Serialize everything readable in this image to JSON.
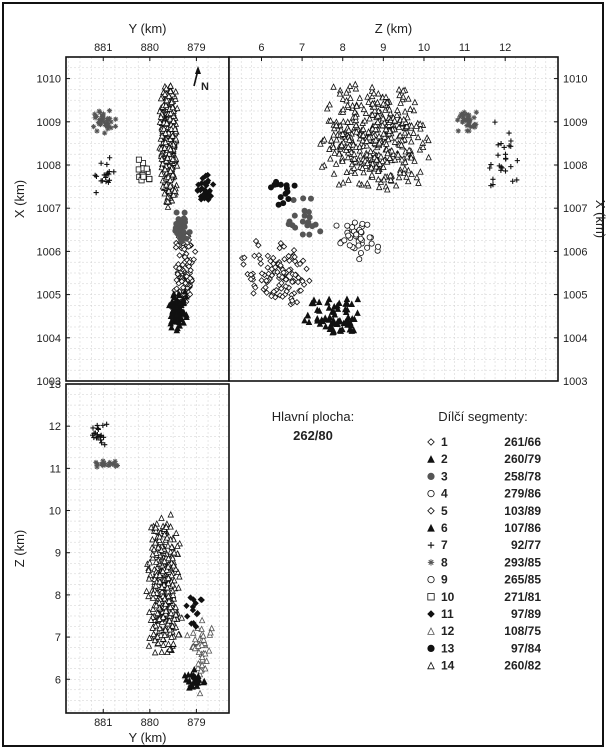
{
  "figure": {
    "main_label": "Hlavní plocha:",
    "main_value": "262/80",
    "legend_title": "Dílčí segmenty:",
    "north_label": "N"
  },
  "chart_data": [
    {
      "type": "scatter",
      "panel": "map-x-y",
      "xlabel": "Y (km)",
      "ylabel": "X (km)",
      "x_reversed": true,
      "xlim": [
        881.8,
        878.3
      ],
      "ylim": [
        1010.5,
        1003
      ],
      "x_ticks": [
        881,
        880,
        879
      ],
      "y_ticks": [
        1003,
        1004,
        1005,
        1006,
        1007,
        1008,
        1009,
        1010
      ],
      "grid": true,
      "clusters": [
        {
          "segment": 14,
          "x": [
            879.8,
            879.4
          ],
          "y": [
            1007.0,
            1010.0
          ],
          "n": 420
        },
        {
          "segment": 1,
          "x": [
            879.5,
            879.0
          ],
          "y": [
            1004.6,
            1006.6
          ],
          "n": 110
        },
        {
          "segment": 6,
          "x": [
            879.6,
            879.2
          ],
          "y": [
            1004.1,
            1005.1
          ],
          "n": 70
        },
        {
          "segment": 3,
          "x": [
            879.5,
            879.1
          ],
          "y": [
            1006.0,
            1007.0
          ],
          "n": 35
        },
        {
          "segment": 11,
          "x": [
            879.0,
            878.6
          ],
          "y": [
            1007.0,
            1007.8
          ],
          "n": 30
        },
        {
          "segment": 7,
          "x": [
            881.2,
            880.7
          ],
          "y": [
            1007.2,
            1008.3
          ],
          "n": 18
        },
        {
          "segment": 8,
          "x": [
            881.3,
            880.7
          ],
          "y": [
            1008.6,
            1009.4
          ],
          "n": 35
        },
        {
          "segment": 10,
          "x": [
            880.3,
            879.9
          ],
          "y": [
            1007.5,
            1008.2
          ],
          "n": 14
        }
      ]
    },
    {
      "type": "scatter",
      "panel": "section-x-z",
      "xlabel": "Z (km)",
      "ylabel": "X (km)",
      "xlim": [
        5.2,
        13.3
      ],
      "ylim": [
        1010.5,
        1003
      ],
      "x_ticks": [
        6,
        7,
        8,
        9,
        10,
        11,
        12
      ],
      "y_ticks": [
        1003,
        1004,
        1005,
        1006,
        1007,
        1008,
        1009,
        1010
      ],
      "grid": true,
      "clusters": [
        {
          "segment": 14,
          "x": [
            7.4,
            10.2
          ],
          "y": [
            1007.3,
            1010.0
          ],
          "n": 420
        },
        {
          "segment": 1,
          "x": [
            5.5,
            7.3
          ],
          "y": [
            1004.6,
            1006.3
          ],
          "n": 110
        },
        {
          "segment": 6,
          "x": [
            7.0,
            8.6
          ],
          "y": [
            1004.0,
            1005.0
          ],
          "n": 70
        },
        {
          "segment": 4,
          "x": [
            7.8,
            9.0
          ],
          "y": [
            1005.8,
            1006.8
          ],
          "n": 40
        },
        {
          "segment": 3,
          "x": [
            6.6,
            7.7
          ],
          "y": [
            1006.2,
            1007.4
          ],
          "n": 20
        },
        {
          "segment": 13,
          "x": [
            6.0,
            6.9
          ],
          "y": [
            1007.0,
            1007.8
          ],
          "n": 14
        },
        {
          "segment": 7,
          "x": [
            11.5,
            12.4
          ],
          "y": [
            1007.1,
            1009.2
          ],
          "n": 26
        },
        {
          "segment": 8,
          "x": [
            10.8,
            11.3
          ],
          "y": [
            1008.7,
            1009.3
          ],
          "n": 35
        }
      ]
    },
    {
      "type": "scatter",
      "panel": "section-z-y",
      "xlabel": "Y (km)",
      "ylabel": "Z (km)",
      "x_reversed": true,
      "xlim": [
        881.8,
        878.3
      ],
      "ylim": [
        13,
        5.2
      ],
      "x_ticks": [
        881,
        880,
        879
      ],
      "y_ticks": [
        6,
        7,
        8,
        9,
        10,
        11,
        12,
        13
      ],
      "grid": true,
      "clusters": [
        {
          "segment": 14,
          "x": [
            880.1,
            879.3
          ],
          "y": [
            6.4,
            10.1
          ],
          "n": 360
        },
        {
          "segment": 12,
          "x": [
            879.2,
            878.6
          ],
          "y": [
            5.6,
            7.6
          ],
          "n": 50
        },
        {
          "segment": 6,
          "x": [
            879.3,
            878.7
          ],
          "y": [
            5.7,
            6.3
          ],
          "n": 25
        },
        {
          "segment": 11,
          "x": [
            879.3,
            878.8
          ],
          "y": [
            7.2,
            8.0
          ],
          "n": 14
        },
        {
          "segment": 8,
          "x": [
            881.2,
            880.6
          ],
          "y": [
            11.0,
            11.2
          ],
          "n": 18
        },
        {
          "segment": 7,
          "x": [
            881.3,
            880.9
          ],
          "y": [
            11.5,
            12.1
          ],
          "n": 20
        }
      ]
    }
  ],
  "legend": [
    {
      "num": "1",
      "value": "261/66",
      "marker": "diamond-open"
    },
    {
      "num": "2",
      "value": "260/79",
      "marker": "triangle-filled"
    },
    {
      "num": "3",
      "value": "258/78",
      "marker": "circle-gray"
    },
    {
      "num": "4",
      "value": "279/86",
      "marker": "circle-open"
    },
    {
      "num": "5",
      "value": "103/89",
      "marker": "diamond-open"
    },
    {
      "num": "6",
      "value": "107/86",
      "marker": "triangle-filled"
    },
    {
      "num": "7",
      "value": "92/77",
      "marker": "plus"
    },
    {
      "num": "8",
      "value": "293/85",
      "marker": "asterisk"
    },
    {
      "num": "9",
      "value": "265/85",
      "marker": "circle-open"
    },
    {
      "num": "10",
      "value": "271/81",
      "marker": "square-open"
    },
    {
      "num": "11",
      "value": "97/89",
      "marker": "diamond-filled"
    },
    {
      "num": "12",
      "value": "108/75",
      "marker": "triangle-gray"
    },
    {
      "num": "13",
      "value": "97/84",
      "marker": "circle-filled"
    },
    {
      "num": "14",
      "value": "260/82",
      "marker": "triangle-open"
    }
  ],
  "colors": {
    "frame": "#111111",
    "grid": "#cfcfcf",
    "dark": "#111111",
    "mid": "#555555",
    "light": "#cccccc"
  }
}
